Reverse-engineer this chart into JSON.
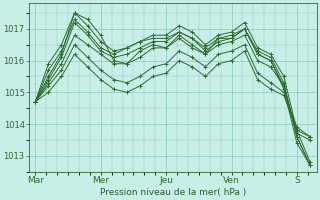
{
  "bg_color": "#c8eee8",
  "grid_color": "#88c8c0",
  "line_color": "#2d6b2d",
  "marker_color": "#2d6b2d",
  "xlabel": "Pression niveau de la mer( hPa )",
  "xlabel_color": "#2d5a2d",
  "ylim": [
    1012.5,
    1017.8
  ],
  "yticks": [
    1013,
    1014,
    1015,
    1016,
    1017
  ],
  "xtick_positions": [
    0,
    1,
    2,
    3,
    4
  ],
  "xtick_labels": [
    "Mar",
    "Mer",
    "Jeu",
    "Ven",
    "S"
  ],
  "series": [
    [
      1014.7,
      1015.9,
      1016.5,
      1017.5,
      1017.1,
      1016.6,
      1016.3,
      1016.4,
      1016.6,
      1016.8,
      1016.8,
      1017.1,
      1016.9,
      1016.5,
      1016.8,
      1016.9,
      1017.2,
      1016.4,
      1016.2,
      1015.5,
      1013.8,
      1012.8
    ],
    [
      1014.7,
      1015.7,
      1016.3,
      1017.3,
      1016.9,
      1016.4,
      1016.2,
      1016.4,
      1016.6,
      1016.7,
      1016.7,
      1016.9,
      1016.7,
      1016.4,
      1016.7,
      1016.7,
      1017.0,
      1016.3,
      1016.1,
      1015.3,
      1013.6,
      1012.7
    ],
    [
      1014.7,
      1015.5,
      1016.2,
      1017.5,
      1017.3,
      1016.8,
      1016.0,
      1015.9,
      1016.3,
      1016.5,
      1016.4,
      1016.8,
      1016.5,
      1016.2,
      1016.7,
      1016.8,
      1017.0,
      1016.2,
      1016.0,
      1015.1,
      1013.4,
      1012.7
    ],
    [
      1014.7,
      1015.3,
      1015.9,
      1016.8,
      1016.5,
      1016.2,
      1015.9,
      1015.9,
      1016.1,
      1016.4,
      1016.4,
      1016.7,
      1016.4,
      1016.2,
      1016.5,
      1016.6,
      1016.8,
      1016.0,
      1015.8,
      1015.2,
      1013.7,
      1013.5
    ],
    [
      1014.7,
      1015.2,
      1015.7,
      1016.5,
      1016.1,
      1015.7,
      1015.4,
      1015.3,
      1015.5,
      1015.8,
      1015.9,
      1016.3,
      1016.1,
      1015.8,
      1016.2,
      1016.3,
      1016.5,
      1015.6,
      1015.3,
      1015.0,
      1013.9,
      1013.6
    ],
    [
      1014.7,
      1015.0,
      1015.5,
      1016.2,
      1015.8,
      1015.4,
      1015.1,
      1015.0,
      1015.2,
      1015.5,
      1015.6,
      1016.0,
      1015.8,
      1015.5,
      1015.9,
      1016.0,
      1016.3,
      1015.4,
      1015.1,
      1014.9,
      1013.8,
      1013.6
    ],
    [
      1014.7,
      1015.4,
      1016.1,
      1017.2,
      1016.8,
      1016.3,
      1016.1,
      1016.2,
      1016.4,
      1016.6,
      1016.6,
      1016.9,
      1016.7,
      1016.3,
      1016.6,
      1016.7,
      1017.0,
      1016.2,
      1016.0,
      1015.2,
      1013.6,
      1012.7
    ]
  ]
}
